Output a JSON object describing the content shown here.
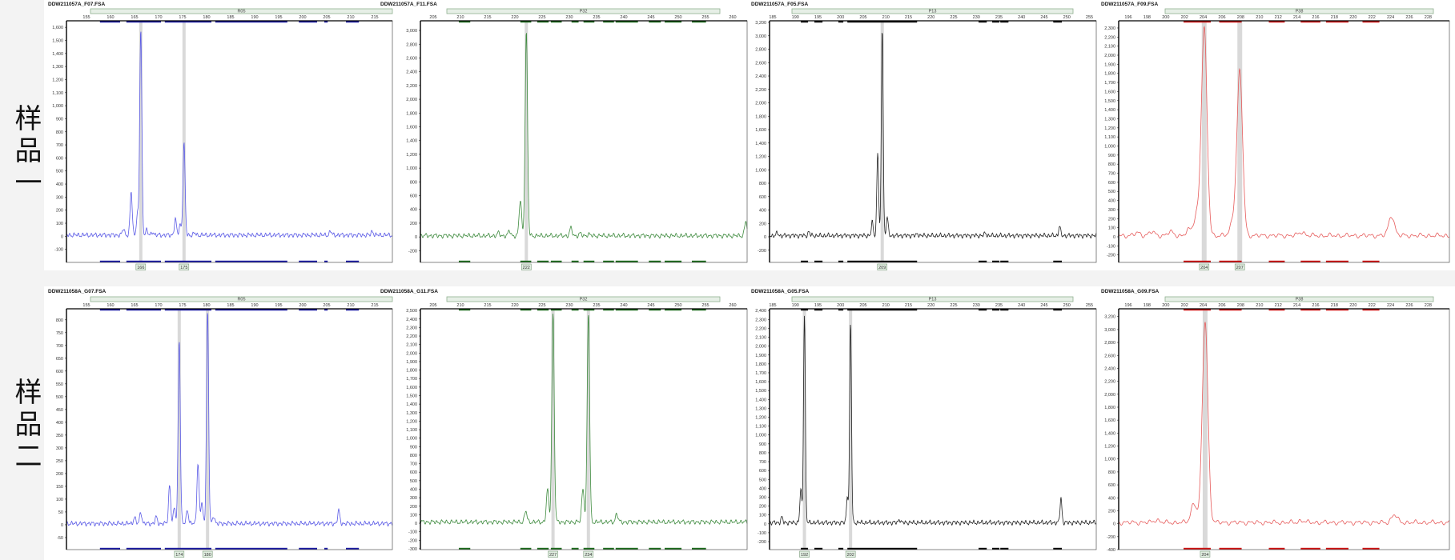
{
  "samples": [
    {
      "label": "样品一"
    },
    {
      "label": "样品二"
    }
  ],
  "chart_data": [
    {
      "type": "line",
      "title": "DDW211057A_F07.FSA",
      "marker": "R05",
      "color": "#5a5ae6",
      "bin_color": "#1a1aa0",
      "xticks": [
        155,
        160,
        165,
        170,
        175,
        180,
        185,
        190,
        195,
        200,
        205,
        210,
        215
      ],
      "ylim": [
        -200,
        1650
      ],
      "yticks_step": 100,
      "yticks_range": [
        -100,
        1600
      ],
      "peaks": [
        [
          162.7,
          50
        ],
        [
          164.3,
          330
        ],
        [
          165.6,
          160
        ],
        [
          166.3,
          1580
        ],
        [
          167.5,
          40
        ],
        [
          168.8,
          25
        ],
        [
          173.5,
          120
        ],
        [
          174.5,
          80
        ],
        [
          175.3,
          700
        ],
        [
          177.5,
          15
        ],
        [
          205.8,
          30
        ],
        [
          214.5,
          30
        ]
      ],
      "alleles": [
        {
          "size": 166.3,
          "label": "166"
        },
        {
          "size": 175.3,
          "label": "175"
        }
      ],
      "bins": [
        [
          157.8,
          162
        ],
        [
          163.3,
          170.5
        ],
        [
          171.3,
          181
        ],
        [
          181.8,
          196.8
        ],
        [
          199.2,
          203
        ],
        [
          204.5,
          205.2
        ],
        [
          209,
          211.7
        ]
      ]
    },
    {
      "type": "line",
      "title": "DDW211057A_F11.FSA",
      "marker": "P32",
      "color": "#3d8a3d",
      "bin_color": "#1c6a1c",
      "xticks": [
        205,
        210,
        215,
        220,
        225,
        230,
        235,
        240,
        245,
        250,
        255,
        260
      ],
      "ylim": [
        -370,
        3140
      ],
      "yticks_step": 200,
      "yticks_range": [
        -200,
        3000
      ],
      "peaks": [
        [
          217,
          40
        ],
        [
          219,
          70
        ],
        [
          221,
          520
        ],
        [
          222.1,
          2950
        ],
        [
          230.3,
          110
        ],
        [
          232,
          30
        ],
        [
          233.5,
          25
        ],
        [
          262.4,
          210
        ]
      ],
      "alleles": [
        {
          "size": 222.1,
          "label": "222"
        }
      ],
      "bins": [
        [
          209.7,
          211.8
        ],
        [
          221,
          223
        ],
        [
          224.1,
          226.2
        ],
        [
          226.6,
          228.6
        ],
        [
          230.4,
          231.7
        ],
        [
          232.6,
          234.6
        ],
        [
          236.2,
          238.2
        ],
        [
          238.5,
          242.6
        ],
        [
          244.6,
          246.8
        ],
        [
          247.5,
          250.6
        ],
        [
          252.5,
          255.1
        ]
      ]
    },
    {
      "type": "line",
      "title": "DDW211057A_F05.FSA",
      "marker": "P13",
      "color": "#222222",
      "bin_color": "#000000",
      "xticks": [
        185,
        190,
        195,
        200,
        205,
        210,
        215,
        220,
        225,
        230,
        235,
        240,
        245,
        250,
        255
      ],
      "ylim": [
        -382,
        3224
      ],
      "yticks_step": 200,
      "yticks_range": [
        -200,
        3200
      ],
      "peaks": [
        [
          186,
          40
        ],
        [
          193,
          60
        ],
        [
          207,
          200
        ],
        [
          208.2,
          1250
        ],
        [
          209.2,
          3100
        ],
        [
          210.3,
          280
        ],
        [
          217,
          30
        ],
        [
          232,
          40
        ],
        [
          248.4,
          140
        ]
      ],
      "alleles": [
        {
          "size": 209.2,
          "label": "209"
        }
      ],
      "bins": [
        [
          191.2,
          192.8
        ],
        [
          194.2,
          196
        ],
        [
          199.5,
          200.6
        ],
        [
          201.5,
          216.9
        ],
        [
          230.5,
          232.3
        ],
        [
          233.5,
          235.1
        ],
        [
          235.3,
          237.1
        ],
        [
          247,
          248.9
        ]
      ]
    },
    {
      "type": "line",
      "title": "DDW211057A_F09.FSA",
      "marker": "P38",
      "color": "#e65a5a",
      "bin_color": "#cc1111",
      "xticks": [
        196,
        198,
        200,
        202,
        204,
        206,
        208,
        210,
        212,
        214,
        216,
        218,
        220,
        222,
        224,
        226,
        228
      ],
      "ylim": [
        -282,
        2379
      ],
      "yticks_step": 100,
      "yticks_range": [
        -200,
        2300
      ],
      "peaks": [
        [
          197,
          30
        ],
        [
          198.5,
          40
        ],
        [
          200.5,
          40
        ],
        [
          202.5,
          60
        ],
        [
          203.3,
          220
        ],
        [
          204.1,
          2280
        ],
        [
          207.2,
          170
        ],
        [
          207.9,
          1800
        ],
        [
          214.5,
          40
        ],
        [
          224.1,
          220
        ]
      ],
      "alleles": [
        {
          "size": 204.1,
          "label": "204"
        },
        {
          "size": 207.9,
          "label": "207"
        }
      ],
      "bins": [
        [
          201.9,
          204.8
        ],
        [
          205.7,
          208.1
        ],
        [
          211,
          212.7
        ],
        [
          214.4,
          216.5
        ],
        [
          217.1,
          219.5
        ],
        [
          221,
          222.8
        ]
      ]
    },
    {
      "type": "line",
      "title": "DDW211058A_G07.FSA",
      "marker": "R05",
      "color": "#5a5ae6",
      "bin_color": "#1a1aa0",
      "xticks": [
        155,
        160,
        165,
        170,
        175,
        180,
        185,
        190,
        195,
        200,
        205,
        210,
        215
      ],
      "ylim": [
        -97,
        843
      ],
      "yticks_step": 50,
      "yticks_range": [
        -50,
        800
      ],
      "peaks": [
        [
          165,
          25
        ],
        [
          166.3,
          45
        ],
        [
          169.5,
          25
        ],
        [
          172.3,
          150
        ],
        [
          173.3,
          60
        ],
        [
          174.3,
          720
        ],
        [
          176,
          55
        ],
        [
          178.2,
          235
        ],
        [
          179,
          80
        ],
        [
          180.2,
          830
        ],
        [
          181.5,
          30
        ],
        [
          207.5,
          50
        ]
      ],
      "alleles": [
        {
          "size": 174.3,
          "label": "174"
        },
        {
          "size": 180.2,
          "label": "180"
        }
      ],
      "bins": [
        [
          157.8,
          162
        ],
        [
          163.3,
          170.5
        ],
        [
          171.3,
          181
        ],
        [
          181.8,
          196.8
        ],
        [
          199.2,
          203
        ],
        [
          204.5,
          205.2
        ],
        [
          209,
          211.7
        ]
      ]
    },
    {
      "type": "line",
      "title": "DDW211058A_G11.FSA",
      "marker": "P32",
      "color": "#3d8a3d",
      "bin_color": "#1c6a1c",
      "xticks": [
        205,
        210,
        215,
        220,
        225,
        230,
        235,
        240,
        245,
        250,
        255,
        260
      ],
      "ylim": [
        -310,
        2520
      ],
      "yticks_step": 100,
      "yticks_range": [
        -300,
        2500
      ],
      "peaks": [
        [
          222,
          130
        ],
        [
          226,
          380
        ],
        [
          227,
          2450
        ],
        [
          232.5,
          400
        ],
        [
          233.5,
          2450
        ],
        [
          238.7,
          100
        ]
      ],
      "alleles": [
        {
          "size": 227,
          "label": "227"
        },
        {
          "size": 233.5,
          "label": "234"
        }
      ],
      "bins": [
        [
          209.7,
          211.8
        ],
        [
          221,
          223
        ],
        [
          224.1,
          226.2
        ],
        [
          226.6,
          228.6
        ],
        [
          230.4,
          231.7
        ],
        [
          232.6,
          234.6
        ],
        [
          236.2,
          238.2
        ],
        [
          238.5,
          242.6
        ],
        [
          244.6,
          246.8
        ],
        [
          247.5,
          250.6
        ],
        [
          252.5,
          255.1
        ]
      ]
    },
    {
      "type": "line",
      "title": "DDW211058A_G05.FSA",
      "marker": "P13",
      "color": "#222222",
      "bin_color": "#000000",
      "xticks": [
        185,
        190,
        195,
        200,
        205,
        210,
        215,
        220,
        225,
        230,
        235,
        240,
        245,
        250,
        255
      ],
      "ylim": [
        -290,
        2420
      ],
      "yticks_step": 100,
      "yticks_range": [
        -200,
        2400
      ],
      "peaks": [
        [
          187,
          60
        ],
        [
          191.2,
          380
        ],
        [
          192,
          2350
        ],
        [
          201.5,
          300
        ],
        [
          202.2,
          2250
        ],
        [
          213,
          40
        ],
        [
          248.7,
          280
        ]
      ],
      "alleles": [
        {
          "size": 192,
          "label": "192"
        },
        {
          "size": 202.2,
          "label": "202"
        }
      ],
      "bins": [
        [
          191.2,
          192.8
        ],
        [
          194.2,
          196
        ],
        [
          199.5,
          200.6
        ],
        [
          201.5,
          216.9
        ],
        [
          230.5,
          232.3
        ],
        [
          233.5,
          235.1
        ],
        [
          235.3,
          237.1
        ],
        [
          247,
          248.9
        ]
      ]
    },
    {
      "type": "line",
      "title": "DDW211058A_G09.FSA",
      "marker": "P38",
      "color": "#e65a5a",
      "bin_color": "#cc1111",
      "xticks": [
        196,
        198,
        200,
        202,
        204,
        206,
        208,
        210,
        212,
        214,
        216,
        218,
        220,
        222,
        224,
        226,
        228
      ],
      "ylim": [
        -400,
        3320
      ],
      "yticks_step": 200,
      "yticks_range": [
        -400,
        3200
      ],
      "peaks": [
        [
          199,
          40
        ],
        [
          203,
          300
        ],
        [
          204.2,
          3100
        ],
        [
          214.5,
          30
        ],
        [
          224.4,
          120
        ]
      ],
      "alleles": [
        {
          "size": 204.2,
          "label": "204"
        }
      ],
      "bins": [
        [
          201.9,
          204.8
        ],
        [
          205.7,
          208.1
        ],
        [
          211,
          212.7
        ],
        [
          214.4,
          216.5
        ],
        [
          217.1,
          219.5
        ],
        [
          221,
          222.8
        ]
      ]
    }
  ]
}
